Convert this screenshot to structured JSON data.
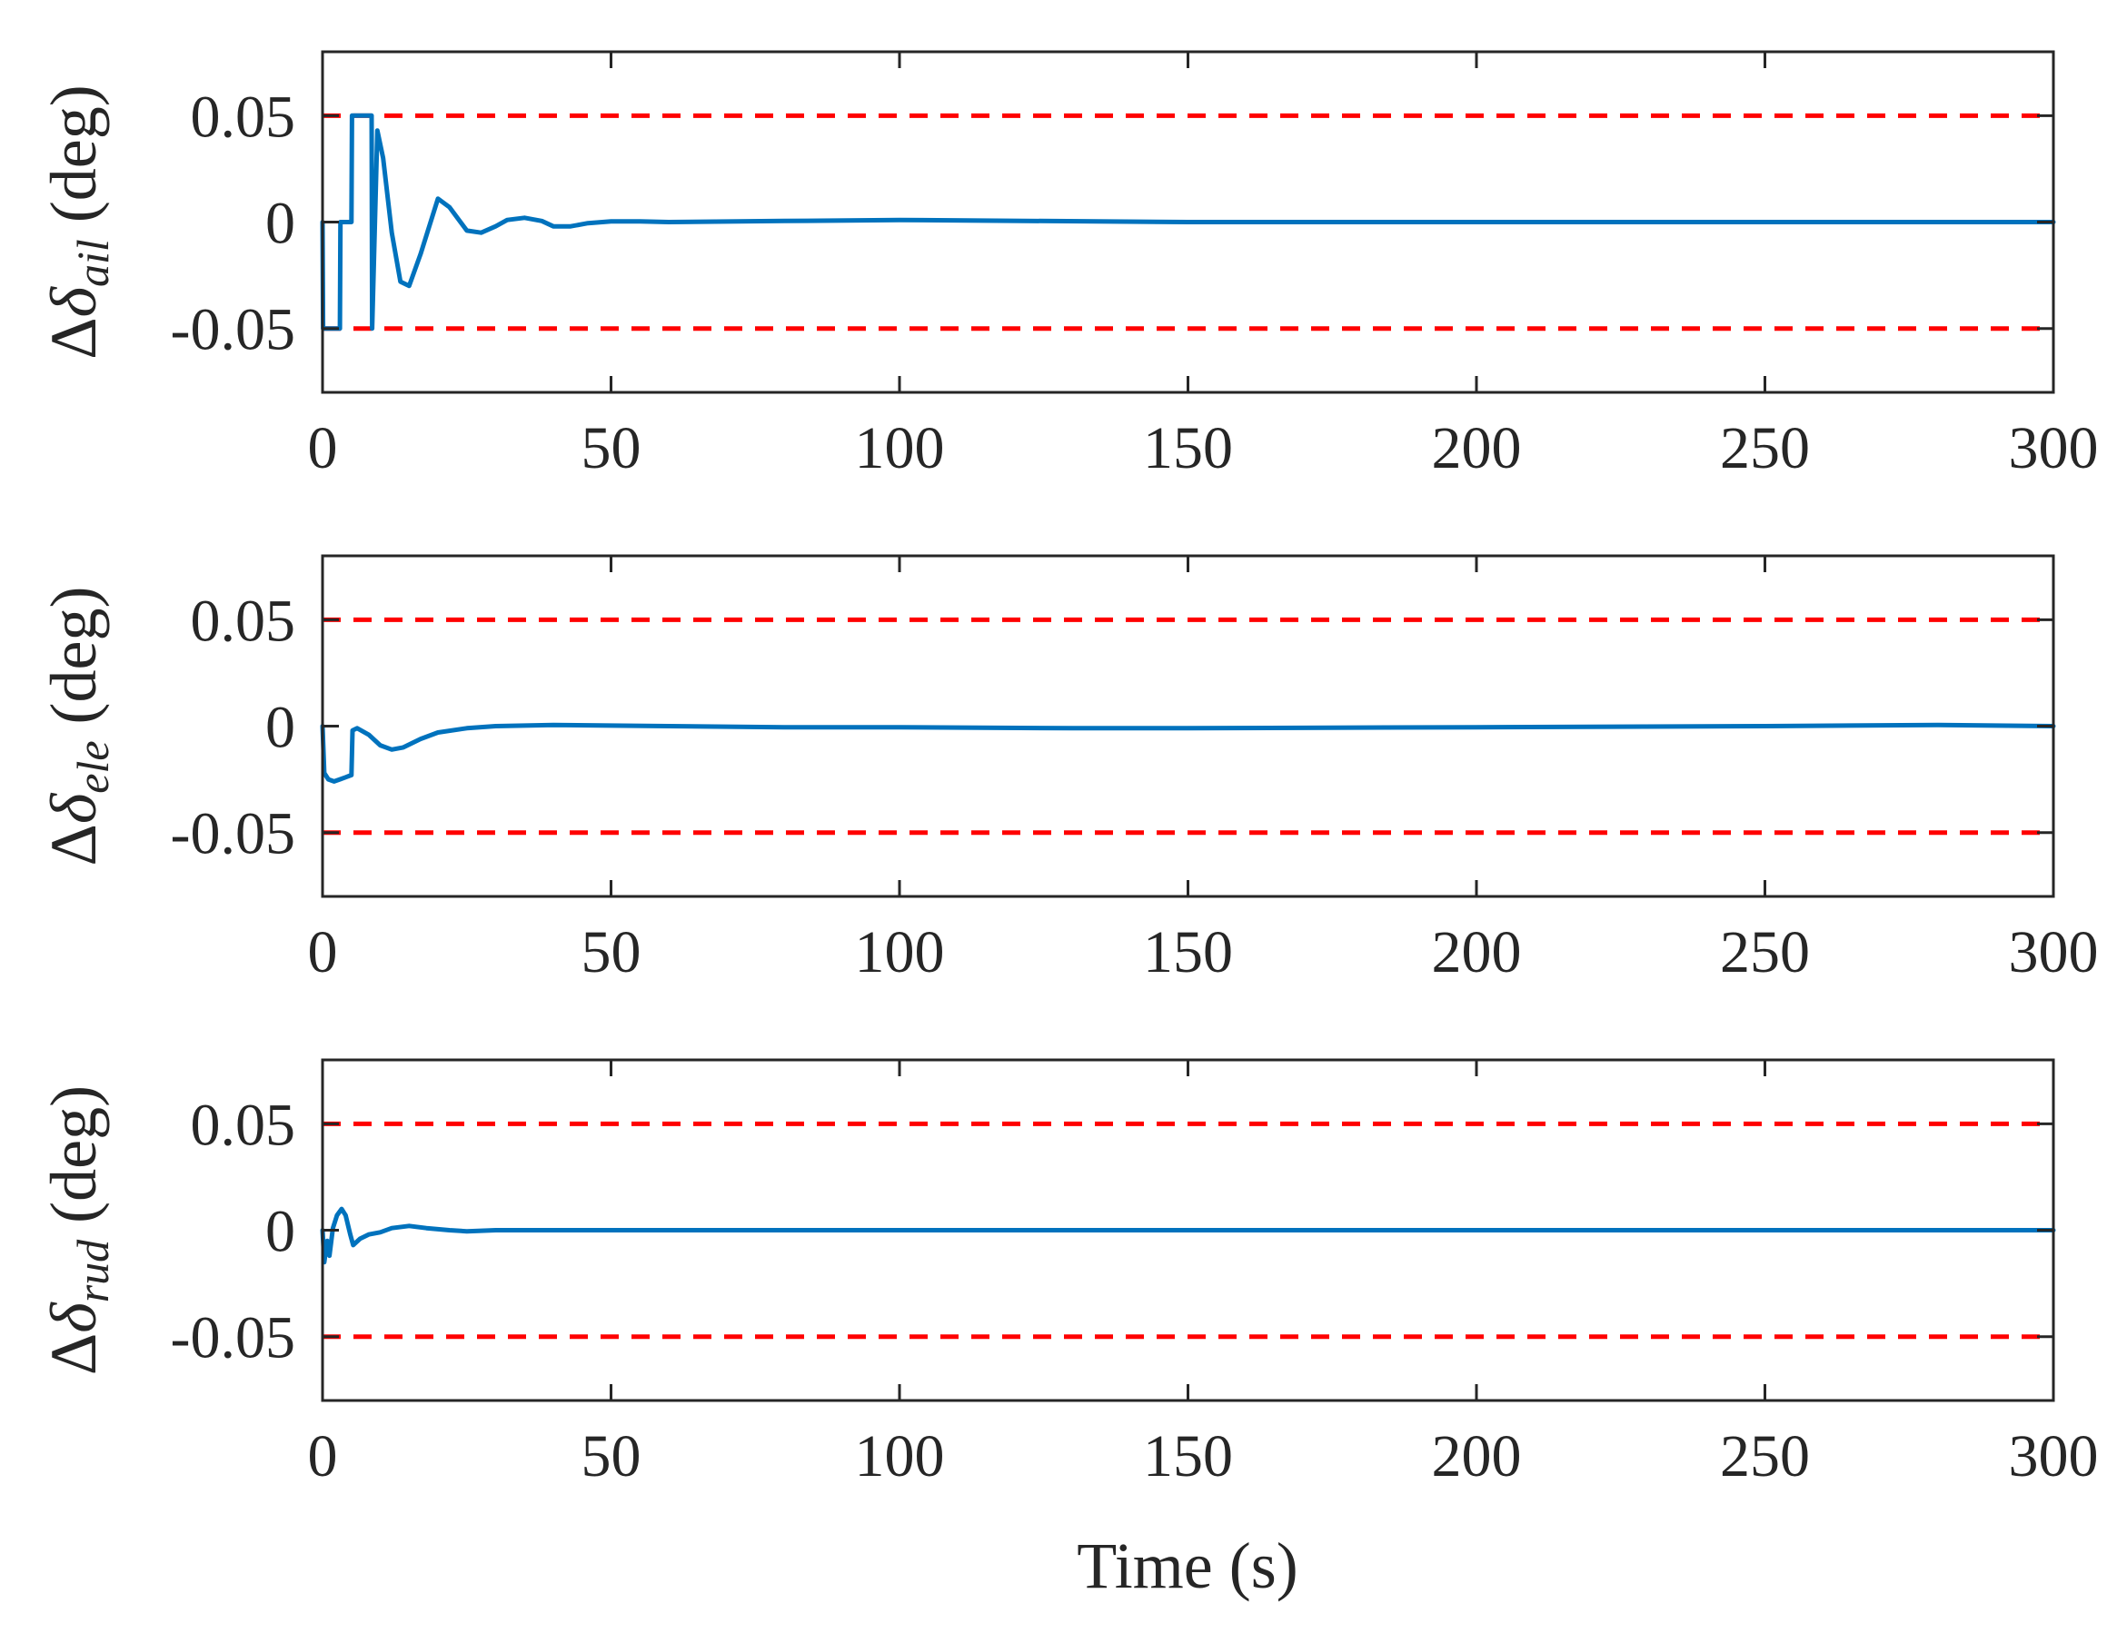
{
  "figure": {
    "xlabel": "Time (s)"
  },
  "chart_data": [
    {
      "type": "line",
      "ylabel": {
        "prefix": "Δ",
        "symbol": "δ",
        "subscript": "ail",
        "unit": "(deg)"
      },
      "xlim": [
        0,
        300
      ],
      "ylim": [
        -0.08,
        0.08
      ],
      "xticks": [
        0,
        50,
        100,
        150,
        200,
        250,
        300
      ],
      "yticks": [
        -0.05,
        0,
        0.05
      ],
      "ytick_labels": [
        "-0.05",
        "0",
        "0.05"
      ],
      "grid": false,
      "colors": {
        "signal": "#0072BD",
        "limits": "#FF0000"
      },
      "limits": [
        0.05,
        -0.05
      ],
      "series": [
        {
          "x": [
            0,
            0.1,
            0.2,
            3,
            3.1,
            5,
            5.1,
            8.5,
            8.6,
            9.5,
            10.5,
            12,
            13.5,
            15,
            17,
            20,
            22,
            25,
            27.5,
            30,
            32,
            35,
            38,
            40,
            43,
            46,
            50,
            55,
            60,
            80,
            100,
            150,
            200,
            250,
            300
          ],
          "y": [
            0,
            -0.05,
            -0.05,
            -0.05,
            0,
            0,
            0.05,
            0.05,
            -0.05,
            0.043,
            0.03,
            -0.005,
            -0.028,
            -0.03,
            -0.015,
            0.011,
            0.007,
            -0.004,
            -0.005,
            -0.002,
            0.001,
            0.002,
            0.0005,
            -0.002,
            -0.002,
            -0.0005,
            0.0003,
            0.0003,
            0,
            0.0005,
            0.001,
            0,
            0,
            0,
            0
          ]
        }
      ]
    },
    {
      "type": "line",
      "ylabel": {
        "prefix": "Δ",
        "symbol": "δ",
        "subscript": "ele",
        "unit": "(deg)"
      },
      "xlim": [
        0,
        300
      ],
      "ylim": [
        -0.08,
        0.08
      ],
      "xticks": [
        0,
        50,
        100,
        150,
        200,
        250,
        300
      ],
      "yticks": [
        -0.05,
        0,
        0.05
      ],
      "ytick_labels": [
        "-0.05",
        "0",
        "0.05"
      ],
      "grid": false,
      "colors": {
        "signal": "#0072BD",
        "limits": "#FF0000"
      },
      "limits": [
        0.05,
        -0.05
      ],
      "series": [
        {
          "x": [
            0,
            0.3,
            1,
            2,
            3,
            4,
            5,
            5.2,
            6,
            8,
            10,
            12,
            14,
            17,
            20,
            25,
            30,
            40,
            60,
            80,
            100,
            130,
            150,
            200,
            250,
            280,
            300
          ],
          "y": [
            0,
            -0.022,
            -0.025,
            -0.026,
            -0.025,
            -0.024,
            -0.023,
            -0.002,
            -0.001,
            -0.004,
            -0.009,
            -0.011,
            -0.01,
            -0.006,
            -0.003,
            -0.001,
            0,
            0.0005,
            0,
            -0.0005,
            -0.0005,
            -0.001,
            -0.001,
            -0.0005,
            0,
            0.0005,
            0
          ]
        }
      ]
    },
    {
      "type": "line",
      "ylabel": {
        "prefix": "Δ",
        "symbol": "δ",
        "subscript": "rud",
        "unit": "(deg)"
      },
      "xlim": [
        0,
        300
      ],
      "ylim": [
        -0.08,
        0.08
      ],
      "xticks": [
        0,
        50,
        100,
        150,
        200,
        250,
        300
      ],
      "yticks": [
        -0.05,
        0,
        0.05
      ],
      "ytick_labels": [
        "-0.05",
        "0",
        "0.05"
      ],
      "grid": false,
      "colors": {
        "signal": "#0072BD",
        "limits": "#FF0000"
      },
      "limits": [
        0.05,
        -0.05
      ],
      "series": [
        {
          "x": [
            0,
            0.3,
            0.8,
            1.2,
            1.8,
            2.5,
            3.3,
            4,
            4.8,
            5.3,
            6.5,
            8,
            10,
            12,
            15,
            18,
            22,
            25,
            30,
            50,
            100,
            150,
            200,
            250,
            300
          ],
          "y": [
            0,
            -0.015,
            -0.005,
            -0.012,
            0.001,
            0.007,
            0.01,
            0.007,
            -0.002,
            -0.007,
            -0.004,
            -0.002,
            -0.001,
            0.001,
            0.002,
            0.001,
            0,
            -0.0005,
            0,
            0,
            0,
            0,
            0,
            0,
            0
          ]
        }
      ]
    }
  ]
}
